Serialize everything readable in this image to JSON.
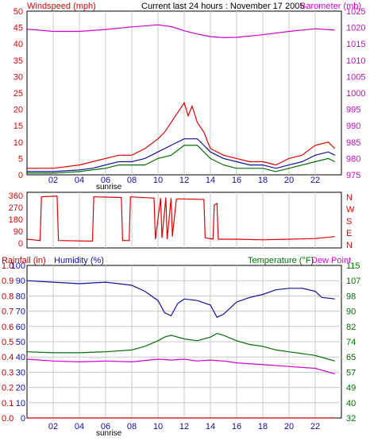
{
  "header": {
    "title": "Current last 24 hours : November 17 2005",
    "windspeed_label": "Windspeed (mph)",
    "barometer_label": "Barometer (mb)"
  },
  "sunrise_label": "sunrise",
  "colors": {
    "frame": "#000000",
    "grid": "#c8c8c8",
    "windspeed": "#e00000",
    "barometer": "#d000d0",
    "humidity": "#1010a0",
    "temperature": "#007000",
    "dewpoint": "#d000d0",
    "rainfall": "#c00000",
    "winddir": "#e00000"
  },
  "chart_data": [
    {
      "id": "wind-baro",
      "type": "line",
      "xlabel_ticks": [
        "02",
        "04",
        "06",
        "08",
        "10",
        "12",
        "14",
        "16",
        "18",
        "20",
        "22"
      ],
      "xlim": [
        0,
        24
      ],
      "left_axis": {
        "label": "Windspeed (mph)",
        "ticks": [
          0,
          5,
          10,
          15,
          20,
          25,
          30,
          35,
          40,
          45,
          50
        ],
        "ylim": [
          0,
          50
        ]
      },
      "right_axis": {
        "label": "Barometer (mb)",
        "ticks": [
          975,
          980,
          985,
          990,
          995,
          1000,
          1005,
          1010,
          1015,
          1020,
          1025
        ],
        "ylim": [
          975,
          1025
        ]
      },
      "series": [
        {
          "key": "barometer",
          "axis": "right",
          "x": [
            0,
            2,
            4,
            6,
            8,
            10,
            11,
            12,
            13,
            14,
            15,
            16,
            18,
            20,
            22,
            23.5
          ],
          "y": [
            1019.5,
            1018.8,
            1018.8,
            1019.4,
            1020.2,
            1020.8,
            1020.3,
            1019.0,
            1018.0,
            1017.2,
            1016.9,
            1017.0,
            1017.8,
            1018.8,
            1019.6,
            1019.2
          ]
        },
        {
          "key": "windspeed",
          "axis": "left",
          "x": [
            0,
            2,
            4,
            5,
            6,
            7,
            8,
            9,
            10,
            10.5,
            11,
            11.5,
            12,
            12.3,
            12.6,
            13,
            13.5,
            14,
            15,
            16,
            17,
            18,
            19,
            20,
            21,
            22,
            23,
            23.5
          ],
          "y": [
            2,
            2,
            3,
            4,
            5,
            6,
            6,
            8,
            11,
            13,
            16,
            19,
            22,
            18,
            21,
            16,
            13,
            8,
            6,
            5,
            4,
            4,
            3,
            5,
            6,
            9,
            10,
            8
          ]
        },
        {
          "key": "humidity",
          "axis": "left",
          "x": [
            0,
            2,
            4,
            5,
            6,
            7,
            8,
            9,
            10,
            11,
            12,
            13,
            14,
            15,
            16,
            17,
            18,
            19,
            20,
            21,
            22,
            23,
            23.5
          ],
          "y": [
            1,
            1,
            1.5,
            2,
            3,
            4,
            4,
            5,
            7,
            9,
            11,
            11,
            7,
            5,
            4,
            3,
            3,
            2,
            3,
            4,
            6,
            7,
            6
          ]
        },
        {
          "key": "temperature",
          "axis": "left",
          "x": [
            0,
            2,
            4,
            5,
            6,
            7,
            8,
            9,
            10,
            11,
            12,
            13,
            14,
            15,
            16,
            17,
            18,
            19,
            20,
            21,
            22,
            23,
            23.5
          ],
          "y": [
            0.5,
            0.5,
            1,
            1.5,
            2,
            3,
            3,
            3,
            5,
            6,
            9,
            9,
            5,
            3,
            2,
            2,
            2,
            1,
            2,
            3,
            4,
            5,
            4
          ]
        }
      ]
    },
    {
      "id": "wind-direction",
      "type": "line",
      "xlim": [
        0,
        24
      ],
      "left_axis": {
        "ticks": [
          0,
          90,
          180,
          270,
          360
        ],
        "ylim": [
          0,
          360
        ]
      },
      "right_axis": {
        "ticks": [
          "N",
          "E",
          "S",
          "W",
          "N"
        ]
      },
      "series": [
        {
          "key": "winddir",
          "x": [
            0,
            1.0,
            1.1,
            2.3,
            2.4,
            5.0,
            5.1,
            7.2,
            7.3,
            7.8,
            7.9,
            9.7,
            9.8,
            10.2,
            10.3,
            10.6,
            10.7,
            11.0,
            11.1,
            11.4,
            11.5,
            13.5,
            13.6,
            14.2,
            14.3,
            14.5,
            14.6,
            16,
            18,
            20,
            22,
            23.5
          ],
          "y": [
            30,
            20,
            350,
            355,
            20,
            15,
            350,
            345,
            20,
            20,
            350,
            340,
            30,
            340,
            40,
            345,
            30,
            340,
            50,
            330,
            335,
            330,
            40,
            30,
            290,
            300,
            30,
            30,
            25,
            30,
            35,
            50
          ]
        }
      ]
    },
    {
      "id": "rain-humidity-temp",
      "type": "line",
      "xlim": [
        0,
        24
      ],
      "labels": {
        "rainfall": "Rainfall (in)",
        "humidity": "Humidity (%)",
        "temperature": "Temperature (°F)",
        "dewpoint": "Dew Point"
      },
      "rainfall_axis": {
        "ticks": [
          "0.0",
          "0.1",
          "0.2",
          "0.3",
          "0.4",
          "0.5",
          "0.6",
          "0.7",
          "0.8",
          "0.9",
          "1.0"
        ],
        "ylim": [
          0,
          1.0
        ]
      },
      "humidity_axis": {
        "ticks": [
          0,
          10,
          20,
          30,
          40,
          50,
          60,
          70,
          80,
          90,
          100
        ],
        "ylim": [
          0,
          100
        ]
      },
      "temperature_axis": {
        "ticks": [
          32,
          40,
          49,
          57,
          65,
          74,
          82,
          90,
          98,
          107,
          115
        ],
        "ylim": [
          32,
          115
        ]
      },
      "series": [
        {
          "key": "humidity",
          "axis": "humidity",
          "x": [
            0,
            2,
            4,
            6,
            8,
            9,
            10,
            10.5,
            11,
            11.5,
            12,
            13,
            14,
            14.5,
            15,
            16,
            17,
            18,
            19,
            20,
            21,
            22,
            22.5,
            23.5
          ],
          "y": [
            90,
            89,
            88,
            89,
            87,
            83,
            77,
            69,
            67,
            75,
            78,
            77,
            74,
            66,
            68,
            76,
            79,
            81,
            84,
            85,
            85,
            83,
            79,
            78
          ]
        },
        {
          "key": "temperature",
          "axis": "temperature",
          "x": [
            0,
            2,
            4,
            6,
            8,
            9,
            10,
            10.5,
            11,
            12,
            13,
            14,
            14.5,
            15,
            16,
            17,
            18,
            19,
            20,
            21,
            22,
            23,
            23.5
          ],
          "y": [
            68,
            67.5,
            67.5,
            68,
            69,
            71,
            74,
            76,
            77,
            75,
            74,
            76,
            78,
            77,
            74,
            72,
            71,
            69,
            68,
            67,
            66,
            64,
            63
          ]
        },
        {
          "key": "dewpoint",
          "axis": "temperature",
          "x": [
            0,
            2,
            4,
            6,
            8,
            10,
            11,
            12,
            13,
            14,
            15,
            16,
            18,
            20,
            21,
            22,
            23,
            23.5
          ],
          "y": [
            64,
            63,
            62.5,
            63,
            62.5,
            64,
            63.5,
            64,
            63,
            63.5,
            63,
            62,
            61,
            60,
            59.5,
            59,
            57,
            56
          ]
        },
        {
          "key": "rainfall",
          "axis": "rainfall",
          "x": [
            0,
            23.5
          ],
          "y": [
            0.0,
            0.0
          ]
        }
      ]
    }
  ]
}
